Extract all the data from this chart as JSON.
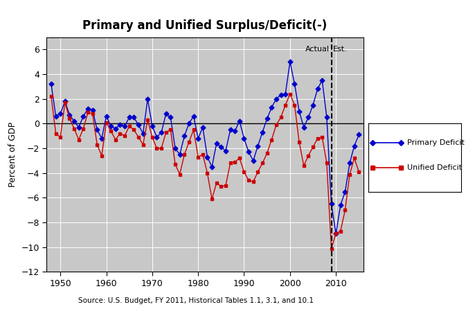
{
  "title": "Primary and Unified Surplus/Deficit(-)",
  "ylabel": "Percent of GDP",
  "source_text": "Source: U.S. Budget, FY 2011, Historical Tables 1.1, 3.1, and 10.1",
  "actual_label": "Actual",
  "est_label": "Est.",
  "divider_year": 2009,
  "xlim": [
    1947,
    2016
  ],
  "ylim": [
    -12,
    7
  ],
  "yticks": [
    -12,
    -10,
    -8,
    -6,
    -4,
    -2,
    0,
    2,
    4,
    6
  ],
  "xticks": [
    1950,
    1960,
    1970,
    1980,
    1990,
    2000,
    2010
  ],
  "primary_color": "#0000CC",
  "unified_color": "#CC0000",
  "primary_label": "Primary Deficit",
  "unified_label": "Unified Deficit",
  "bg_color": "#c8c8c8",
  "fig_color": "#ffffff",
  "years": [
    1948,
    1949,
    1950,
    1951,
    1952,
    1953,
    1954,
    1955,
    1956,
    1957,
    1958,
    1959,
    1960,
    1961,
    1962,
    1963,
    1964,
    1965,
    1966,
    1967,
    1968,
    1969,
    1970,
    1971,
    1972,
    1973,
    1974,
    1975,
    1976,
    1977,
    1978,
    1979,
    1980,
    1981,
    1982,
    1983,
    1984,
    1985,
    1986,
    1987,
    1988,
    1989,
    1990,
    1991,
    1992,
    1993,
    1994,
    1995,
    1996,
    1997,
    1998,
    1999,
    2000,
    2001,
    2002,
    2003,
    2004,
    2005,
    2006,
    2007,
    2008,
    2009,
    2010,
    2011,
    2012,
    2013,
    2014,
    2015
  ],
  "primary": [
    3.2,
    0.6,
    0.8,
    1.8,
    0.7,
    0.2,
    -0.3,
    0.6,
    1.2,
    1.1,
    -0.5,
    -1.2,
    0.6,
    -0.2,
    -0.4,
    -0.1,
    -0.2,
    0.5,
    0.5,
    -0.1,
    -0.8,
    2.0,
    -0.2,
    -1.1,
    -0.7,
    0.8,
    0.5,
    -2.0,
    -2.5,
    -1.0,
    0.0,
    0.6,
    -1.2,
    -0.3,
    -2.7,
    -3.5,
    -1.6,
    -1.9,
    -2.2,
    -0.5,
    -0.6,
    0.2,
    -1.2,
    -2.3,
    -3.0,
    -1.8,
    -0.7,
    0.4,
    1.3,
    2.0,
    2.3,
    2.4,
    5.0,
    3.2,
    1.0,
    -0.3,
    0.5,
    1.5,
    2.8,
    3.5,
    0.5,
    -6.5,
    -8.9,
    -6.6,
    -5.5,
    -3.2,
    -1.8,
    -0.9
  ],
  "unified": [
    2.2,
    -0.8,
    -1.1,
    1.7,
    0.4,
    -0.4,
    -1.3,
    -0.4,
    0.9,
    0.8,
    -1.7,
    -2.6,
    0.1,
    -0.6,
    -1.3,
    -0.8,
    -1.0,
    -0.2,
    -0.5,
    -1.1,
    -1.7,
    0.3,
    -1.1,
    -2.0,
    -2.0,
    -0.7,
    -0.5,
    -3.3,
    -4.1,
    -2.5,
    -1.5,
    -0.5,
    -2.7,
    -2.5,
    -4.0,
    -6.1,
    -4.8,
    -5.1,
    -5.0,
    -3.2,
    -3.1,
    -2.8,
    -3.9,
    -4.6,
    -4.7,
    -3.9,
    -3.2,
    -2.4,
    -1.3,
    -0.1,
    0.5,
    1.5,
    2.4,
    1.5,
    -1.5,
    -3.4,
    -2.6,
    -1.9,
    -1.2,
    -1.1,
    -3.2,
    -10.1,
    -8.9,
    -8.7,
    -7.0,
    -4.1,
    -2.8,
    -3.9
  ]
}
